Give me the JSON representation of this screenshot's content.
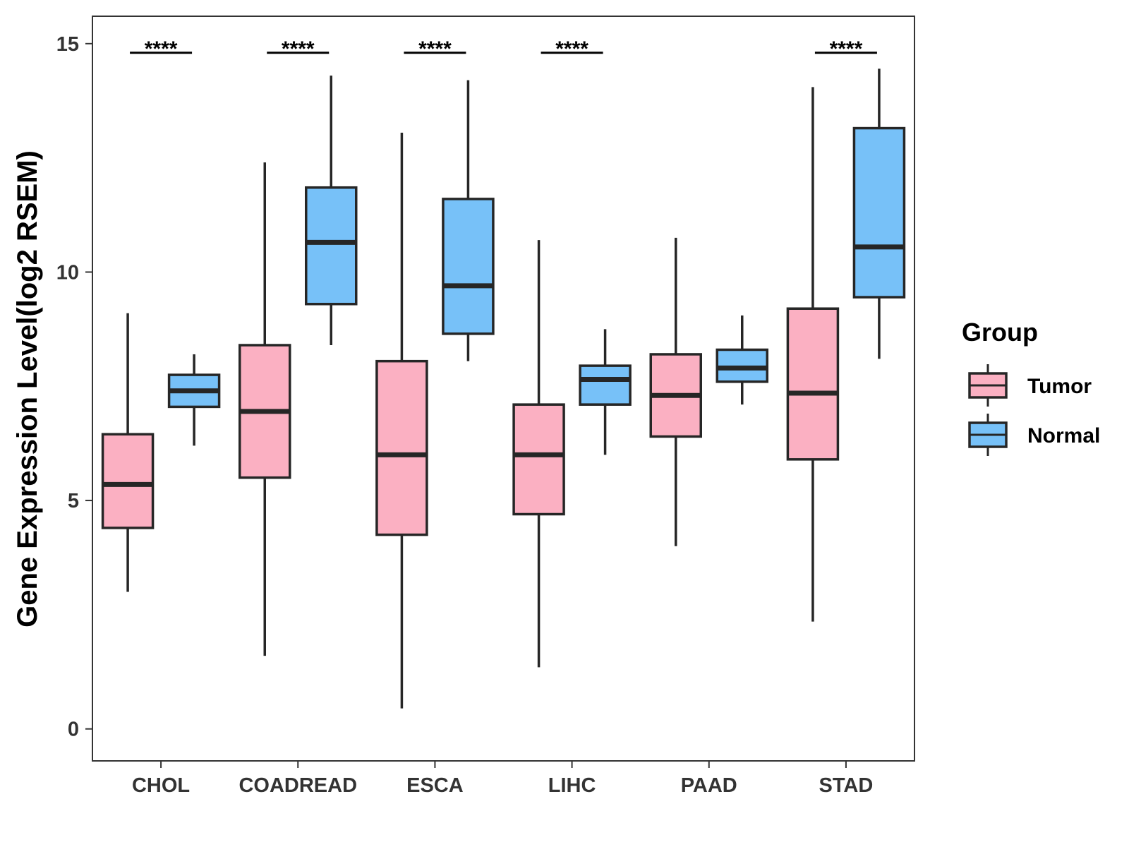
{
  "chart_data": {
    "type": "boxplot",
    "title": "",
    "xlabel": "",
    "ylabel": "Gene Expression Level(log2 RSEM)",
    "ylim": [
      -0.7,
      15.6
    ],
    "yticks": [
      0,
      5,
      10,
      15
    ],
    "categories": [
      "CHOL",
      "COADREAD",
      "ESCA",
      "LIHC",
      "PAAD",
      "STAD"
    ],
    "series": [
      {
        "name": "Tumor",
        "color": "#FBB0C2",
        "boxes": [
          {
            "whislo": 3.0,
            "q1": 4.4,
            "median": 5.35,
            "q3": 6.45,
            "whishi": 9.1
          },
          {
            "whislo": 1.6,
            "q1": 5.5,
            "median": 6.95,
            "q3": 8.4,
            "whishi": 12.4
          },
          {
            "whislo": 0.45,
            "q1": 4.25,
            "median": 6.0,
            "q3": 8.05,
            "whishi": 13.05
          },
          {
            "whislo": 1.35,
            "q1": 4.7,
            "median": 6.0,
            "q3": 7.1,
            "whishi": 10.7
          },
          {
            "whislo": 4.0,
            "q1": 6.4,
            "median": 7.3,
            "q3": 8.2,
            "whishi": 10.75
          },
          {
            "whislo": 2.35,
            "q1": 5.9,
            "median": 7.35,
            "q3": 9.2,
            "whishi": 14.05
          }
        ]
      },
      {
        "name": "Normal",
        "color": "#77C1F8",
        "boxes": [
          {
            "whislo": 6.2,
            "q1": 7.05,
            "median": 7.4,
            "q3": 7.75,
            "whishi": 8.2
          },
          {
            "whislo": 8.4,
            "q1": 9.3,
            "median": 10.65,
            "q3": 11.85,
            "whishi": 14.3
          },
          {
            "whislo": 8.05,
            "q1": 8.65,
            "median": 9.7,
            "q3": 11.6,
            "whishi": 14.2
          },
          {
            "whislo": 6.0,
            "q1": 7.1,
            "median": 7.65,
            "q3": 7.95,
            "whishi": 8.75
          },
          {
            "whislo": 7.1,
            "q1": 7.6,
            "median": 7.9,
            "q3": 8.3,
            "whishi": 9.05
          },
          {
            "whislo": 8.1,
            "q1": 9.45,
            "median": 10.55,
            "q3": 13.15,
            "whishi": 14.45
          }
        ]
      }
    ],
    "annotations": [
      {
        "category": "CHOL",
        "text": "****"
      },
      {
        "category": "COADREAD",
        "text": "****"
      },
      {
        "category": "ESCA",
        "text": "****"
      },
      {
        "category": "LIHC",
        "text": "****"
      },
      {
        "category": "PAAD",
        "text": ""
      },
      {
        "category": "STAD",
        "text": "****"
      }
    ],
    "annotation_level": 14.8,
    "legend": {
      "title": "Group",
      "position": "right",
      "entries": [
        "Tumor",
        "Normal"
      ]
    },
    "grid": false
  }
}
